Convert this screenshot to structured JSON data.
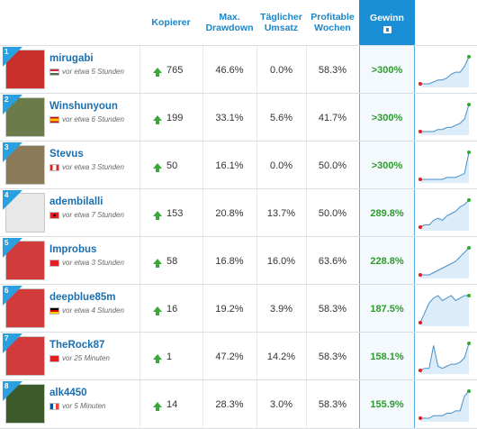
{
  "headers": {
    "copiers": "Kopierer",
    "max_drawdown": "Max. Drawdown",
    "daily_turnover": "Täglicher Umsatz",
    "profitable_weeks": "Profitable Wochen",
    "gain": "Gewinn"
  },
  "colors": {
    "accent": "#1a8fd6",
    "positive": "#2e9a2e",
    "rank_badge": "#2aa0e0"
  },
  "traders": [
    {
      "rank": "1",
      "name": "mirugabi",
      "flag": "hungary-flag",
      "last_seen": "vor etwa 5 Stunden",
      "copiers": "765",
      "max_drawdown": "46.6%",
      "daily_turnover": "0.0%",
      "profitable_weeks": "58.3%",
      "gain": ">300%",
      "spark": [
        0,
        0,
        0,
        1,
        2,
        2,
        3,
        5,
        6,
        6,
        9,
        14
      ]
    },
    {
      "rank": "2",
      "name": "Winshunyoun",
      "flag": "spain-flag",
      "last_seen": "vor etwa 6 Stunden",
      "copiers": "199",
      "max_drawdown": "33.1%",
      "daily_turnover": "5.6%",
      "profitable_weeks": "41.7%",
      "gain": ">300%",
      "spark": [
        0,
        0,
        0,
        0,
        1,
        1,
        2,
        2,
        3,
        4,
        6,
        13
      ]
    },
    {
      "rank": "3",
      "name": "Stevus",
      "flag": "canada-flag",
      "last_seen": "vor etwa 3 Stunden",
      "copiers": "50",
      "max_drawdown": "16.1%",
      "daily_turnover": "0.0%",
      "profitable_weeks": "50.0%",
      "gain": ">300%",
      "spark": [
        0,
        0,
        0,
        0,
        0,
        0,
        1,
        1,
        1,
        2,
        3,
        14
      ]
    },
    {
      "rank": "4",
      "name": "adembilalli",
      "flag": "albania-flag",
      "last_seen": "vor etwa 7 Stunden",
      "copiers": "153",
      "max_drawdown": "20.8%",
      "daily_turnover": "13.7%",
      "profitable_weeks": "50.0%",
      "gain": "289.8%",
      "spark": [
        0,
        1,
        1,
        3,
        4,
        3,
        5,
        6,
        7,
        9,
        10,
        12
      ]
    },
    {
      "rank": "5",
      "name": "Improbus",
      "flag": "switzerland-flag",
      "last_seen": "vor etwa 3 Stunden",
      "copiers": "58",
      "max_drawdown": "16.8%",
      "daily_turnover": "16.0%",
      "profitable_weeks": "63.6%",
      "gain": "228.8%",
      "spark": [
        0,
        0,
        0,
        1,
        2,
        3,
        4,
        5,
        6,
        8,
        10,
        12
      ]
    },
    {
      "rank": "6",
      "name": "deepblue85m",
      "flag": "germany-flag",
      "last_seen": "vor etwa 4 Stunden",
      "copiers": "16",
      "max_drawdown": "19.2%",
      "daily_turnover": "3.9%",
      "profitable_weeks": "58.3%",
      "gain": "187.5%",
      "spark": [
        0,
        4,
        8,
        10,
        11,
        9,
        10,
        11,
        9,
        10,
        11,
        11
      ]
    },
    {
      "rank": "7",
      "name": "TheRock87",
      "flag": "switzerland-flag",
      "last_seen": "vor 25 Minuten",
      "copiers": "1",
      "max_drawdown": "47.2%",
      "daily_turnover": "14.2%",
      "profitable_weeks": "58.3%",
      "gain": "158.1%",
      "spark": [
        0,
        1,
        1,
        12,
        2,
        1,
        2,
        3,
        3,
        4,
        6,
        13
      ]
    },
    {
      "rank": "8",
      "name": "alk4450",
      "flag": "france-flag",
      "last_seen": "vor 5 Minuten",
      "copiers": "14",
      "max_drawdown": "28.3%",
      "daily_turnover": "3.0%",
      "profitable_weeks": "58.3%",
      "gain": "155.9%",
      "spark": [
        0,
        0,
        0,
        1,
        1,
        1,
        2,
        2,
        3,
        3,
        9,
        11
      ]
    }
  ]
}
